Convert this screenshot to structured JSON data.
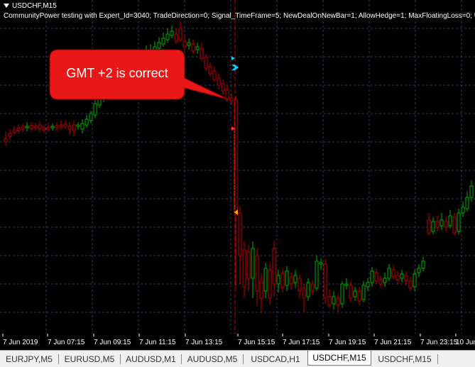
{
  "chart": {
    "symbol": "USDCHF,M15",
    "expert_line": "CommunityPower testing with Expert_Id=3040; TradeDirection=0; Signal_TimeFrame=5; NewDealOnNewBar=1; AllowHedge=1; MaxFloatingLoss=0; UseCu",
    "callout_text": "GMT +2 is correct",
    "time_axis": [
      "7 Jun 2019",
      "7 Jun 07:15",
      "7 Jun 09:15",
      "7 Jun 11:15",
      "7 Jun 13:15",
      "7 Jun 15:15",
      "7 Jun 17:15",
      "7 Jun 19:15",
      "7 Jun 21:15",
      "7 Jun 23:15",
      "10 Jun"
    ],
    "colors": {
      "background": "#000000",
      "bull": "#00b000",
      "bear": "#c00000",
      "grid": "#3a3a55",
      "callout": "#e81818",
      "marker_cyan": "#00d0ff",
      "marker_orange": "#ffa500",
      "marker_red": "#ff3030",
      "period_sep": "#d00000"
    }
  },
  "tabs": [
    {
      "label": "EURJPY,M5",
      "active": false
    },
    {
      "label": "EURUSD,M5",
      "active": false
    },
    {
      "label": "AUDUSD,M1",
      "active": false
    },
    {
      "label": "AUDUSD,M5",
      "active": false
    },
    {
      "label": "USDCAD,H1",
      "active": false
    },
    {
      "label": "USDCHF,M15",
      "active": true
    },
    {
      "label": "USDCHF,M15",
      "active": false
    }
  ]
}
